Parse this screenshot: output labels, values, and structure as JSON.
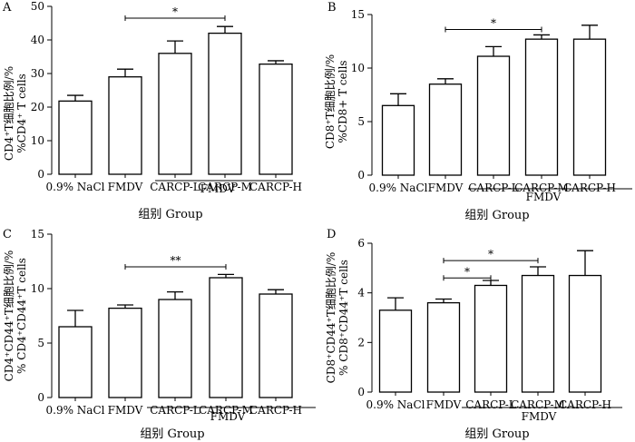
{
  "chart_data": [
    {
      "type": "bar",
      "panel_label": "A",
      "categories": [
        "0.9% NaCl",
        "FMDV",
        "CARCP-L",
        "CARCP-M",
        "CARCP-H"
      ],
      "values": [
        21.8,
        29.0,
        36.0,
        42.0,
        32.8
      ],
      "errors": [
        1.7,
        2.3,
        3.7,
        2.0,
        1.0
      ],
      "ylim": [
        0,
        50
      ],
      "yticks": [
        0,
        10,
        20,
        30,
        40,
        50
      ],
      "ylabel_line1": "CD4⁺T细胞比例/%",
      "ylabel_line2": "%CD4⁺ T cells",
      "xlabel": "组别  Group",
      "group_label": "FMDV",
      "significance": [
        {
          "from": 1,
          "to": 3,
          "label": "*",
          "y": 46.5
        }
      ]
    },
    {
      "type": "bar",
      "panel_label": "B",
      "categories": [
        "0.9% NaCl",
        "FMDV",
        "CARCP-L",
        "CARCP-M",
        "CARCP-H"
      ],
      "values": [
        6.5,
        8.5,
        11.1,
        12.7,
        12.7
      ],
      "errors": [
        1.1,
        0.5,
        0.9,
        0.4,
        1.3
      ],
      "ylim": [
        0,
        15
      ],
      "yticks": [
        0,
        5,
        10,
        15
      ],
      "ylabel_line1": "CD8⁺T细胞比例/%",
      "ylabel_line2": "%CD8+ T cells",
      "xlabel": "组别  Group",
      "group_label": "FMDV",
      "significance": [
        {
          "from": 1,
          "to": 3,
          "label": "*",
          "y": 13.6
        }
      ]
    },
    {
      "type": "bar",
      "panel_label": "C",
      "categories": [
        "0.9% NaCl",
        "FMDV",
        "CARCP-L",
        "CARCP-M",
        "CARCP-H"
      ],
      "values": [
        6.5,
        8.2,
        9.0,
        11.0,
        9.5
      ],
      "errors": [
        1.5,
        0.3,
        0.7,
        0.3,
        0.4
      ],
      "ylim": [
        0,
        15
      ],
      "yticks": [
        0,
        5,
        10,
        15
      ],
      "ylabel_line1": "CD4⁺CD44⁺T细胞比例/%",
      "ylabel_line2": "% CD4⁺CD44⁺T cells",
      "xlabel": "组别  Group",
      "group_label": "FMDV",
      "significance": [
        {
          "from": 1,
          "to": 3,
          "label": "**",
          "y": 12.0
        }
      ]
    },
    {
      "type": "bar",
      "panel_label": "D",
      "categories": [
        "0.9% NaCl",
        "FMDV",
        "CARCP-L",
        "CARCP-M",
        "CARCP-H"
      ],
      "values": [
        3.3,
        3.6,
        4.3,
        4.7,
        4.7
      ],
      "errors": [
        0.5,
        0.15,
        0.2,
        0.35,
        1.0
      ],
      "ylim": [
        0,
        6
      ],
      "yticks": [
        0,
        2,
        4,
        6
      ],
      "ylabel_line1": "CD8⁺CD44⁺T细胞比例/%",
      "ylabel_line2": "% CD8⁺CD44⁺T cells",
      "xlabel": "组别  Group",
      "group_label": "FMDV",
      "significance": [
        {
          "from": 1,
          "to": 2,
          "label": "*",
          "y": 4.6
        },
        {
          "from": 1,
          "to": 3,
          "label": "*",
          "y": 5.3
        }
      ]
    }
  ]
}
